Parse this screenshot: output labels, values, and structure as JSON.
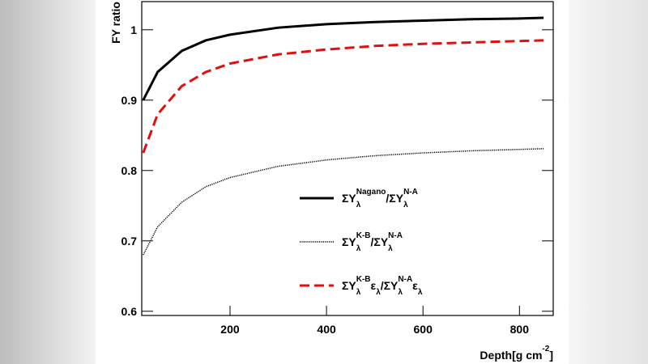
{
  "chart_data": {
    "type": "line",
    "y_label": "FY ratio",
    "x_label": [
      {
        "text": "Depth[g cm"
      },
      {
        "sup": "-2"
      },
      {
        "text": "]"
      }
    ],
    "x": [
      20,
      50,
      100,
      150,
      200,
      300,
      400,
      500,
      600,
      700,
      800,
      850
    ],
    "series": [
      {
        "name": [
          {
            "text": "ΣY"
          },
          {
            "sub": "λ"
          },
          {
            "sup": "Nagano"
          },
          {
            "text": "/ΣY"
          },
          {
            "sub": "λ"
          },
          {
            "sup": "N-A"
          }
        ],
        "color": "#000000",
        "dash": "solid",
        "values": [
          0.9,
          0.94,
          0.97,
          0.985,
          0.993,
          1.003,
          1.008,
          1.011,
          1.013,
          1.015,
          1.016,
          1.017
        ]
      },
      {
        "name": [
          {
            "text": "ΣY"
          },
          {
            "sub": "λ"
          },
          {
            "sup": "K-B"
          },
          {
            "text": "/ΣY"
          },
          {
            "sub": "λ"
          },
          {
            "sup": "N-A"
          }
        ],
        "color": "#000000",
        "dash": "dotted",
        "values": [
          0.68,
          0.72,
          0.755,
          0.777,
          0.79,
          0.806,
          0.815,
          0.821,
          0.825,
          0.828,
          0.83,
          0.831
        ]
      },
      {
        "name": [
          {
            "text": "ΣY"
          },
          {
            "sub": "λ"
          },
          {
            "sup": "K-B"
          },
          {
            "text": "ε"
          },
          {
            "sub": "λ"
          },
          {
            "text": "/ΣY"
          },
          {
            "sub": "λ"
          },
          {
            "sup": "N-A"
          },
          {
            "text": "ε"
          },
          {
            "sub": "λ"
          }
        ],
        "color": "#e01010",
        "dash": "dashed",
        "values": [
          0.825,
          0.88,
          0.92,
          0.94,
          0.952,
          0.965,
          0.972,
          0.977,
          0.98,
          0.982,
          0.984,
          0.985
        ]
      }
    ],
    "xlim": [
      17,
      870
    ],
    "ylim": [
      0.594,
      1.04
    ],
    "xticks": [
      200,
      400,
      600,
      800
    ],
    "yticks": [
      0.6,
      0.7,
      0.8,
      0.9,
      1
    ],
    "grid": false
  }
}
